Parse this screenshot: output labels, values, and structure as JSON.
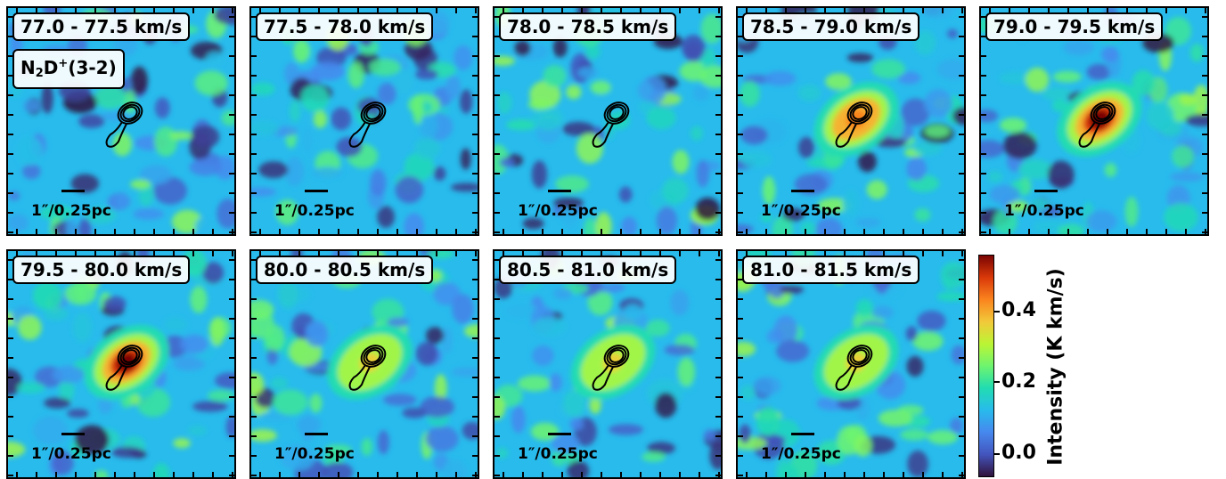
{
  "panels": [
    {
      "label": "77.0 - 77.5 km/s",
      "peak": 0.0
    },
    {
      "label": "77.5 - 78.0 km/s",
      "peak": 0.0
    },
    {
      "label": "78.0 - 78.5 km/s",
      "peak": 0.0
    },
    {
      "label": "78.5 - 79.0 km/s",
      "peak": 0.42
    },
    {
      "label": "79.0 - 79.5 km/s",
      "peak": 0.55
    },
    {
      "label": "79.5 - 80.0 km/s",
      "peak": 0.55
    },
    {
      "label": "80.0 - 80.5 km/s",
      "peak": 0.35
    },
    {
      "label": "80.5 - 81.0 km/s",
      "peak": 0.35
    },
    {
      "label": "81.0 - 81.5 km/s",
      "peak": 0.35
    }
  ],
  "molecule": {
    "base": "N",
    "sub": "2",
    "mid": "D",
    "sup": "+",
    "tail": "(3-2)"
  },
  "scalebar_label": "1″/0.25pc",
  "colorbar": {
    "title": "Intensity (K km/s)",
    "ticks": [
      "0.0",
      "0.2",
      "0.4"
    ],
    "range": [
      -0.06,
      0.54
    ],
    "colormap": "turbo"
  },
  "chart_data": {
    "type": "heatmap",
    "title": "",
    "colormap": "turbo",
    "value_range": [
      -0.06,
      0.54
    ],
    "colorbar_ticks": [
      0.0,
      0.2,
      0.4
    ],
    "colorbar_label": "Intensity (K km/s)",
    "velocity_channels_km_s": [
      [
        77.0,
        77.5
      ],
      [
        77.5,
        78.0
      ],
      [
        78.0,
        78.5
      ],
      [
        78.5,
        79.0
      ],
      [
        79.0,
        79.5
      ],
      [
        79.5,
        80.0
      ],
      [
        80.0,
        80.5
      ],
      [
        80.5,
        81.0
      ],
      [
        81.0,
        81.5
      ]
    ],
    "approx_peak_intensity": [
      0.0,
      0.0,
      0.0,
      0.42,
      0.55,
      0.55,
      0.35,
      0.35,
      0.35
    ],
    "line": "N2D+ (3-2)",
    "scale": "1″/0.25pc"
  }
}
